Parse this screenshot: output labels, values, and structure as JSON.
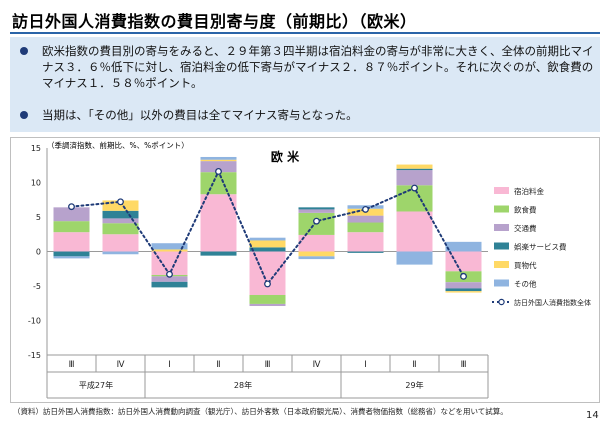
{
  "header": {
    "title": "訪日外国人消費指数の費目別寄与度（前期比）（欧米）"
  },
  "bullets": [
    "欧米指数の費目別の寄与をみると、２９年第３四半期は宿泊料金の寄与が非常に大きく、全体の前期比マイナス３．６％低下に対し、宿泊料金の低下寄与がマイナス２．８７％ポイント。それに次ぐのが、飲食費のマイナス１．５８％ポイント。",
    "当期は、「その他」以外の費目は全てマイナス寄与となった。"
  ],
  "chart_data": {
    "type": "bar",
    "stacked": true,
    "title": "欧 米",
    "unit_note": "（季調済指数、前期比、%、%ポイント）",
    "ylim": [
      -15,
      15
    ],
    "yticks": [
      15,
      10,
      5,
      0,
      -5,
      -10,
      -15
    ],
    "categories": [
      "Ⅲ",
      "Ⅳ",
      "Ⅰ",
      "Ⅱ",
      "Ⅲ",
      "Ⅳ",
      "Ⅰ",
      "Ⅱ",
      "Ⅲ"
    ],
    "year_labels": [
      {
        "label": "平成27年",
        "start": 0,
        "end": 1
      },
      {
        "label": "28年",
        "start": 2,
        "end": 5
      },
      {
        "label": "29年",
        "start": 6,
        "end": 8
      }
    ],
    "series": [
      {
        "name": "宿泊料金",
        "color": "#f9b8d4",
        "values": [
          2.8,
          2.5,
          -3.4,
          8.3,
          -6.3,
          2.4,
          2.8,
          5.8,
          -2.87
        ]
      },
      {
        "name": "飲食費",
        "color": "#9ed56b",
        "values": [
          1.6,
          1.6,
          -0.2,
          3.2,
          -1.3,
          3.2,
          1.4,
          3.8,
          -1.58
        ]
      },
      {
        "name": "交通費",
        "color": "#b7a2cc",
        "values": [
          2.0,
          0.7,
          -0.8,
          1.6,
          -0.3,
          0.5,
          1.0,
          2.2,
          -0.9
        ]
      },
      {
        "name": "娯楽サービス費",
        "color": "#2f8296",
        "values": [
          -0.7,
          1.1,
          -0.8,
          -0.6,
          0.6,
          0.3,
          -0.2,
          0.2,
          -0.4
        ]
      },
      {
        "name": "買物代",
        "color": "#ffd965",
        "values": [
          0.0,
          1.5,
          0.3,
          0.2,
          1.0,
          -0.7,
          1.0,
          0.6,
          -0.2
        ]
      },
      {
        "name": "その他",
        "color": "#8fb4e0",
        "values": [
          -0.3,
          -0.4,
          0.9,
          0.4,
          0.4,
          -0.4,
          0.5,
          -1.9,
          1.4
        ]
      }
    ],
    "line": {
      "name": "訪日外国人消費指数全体",
      "color": "#1f3b78",
      "values": [
        6.5,
        7.2,
        -3.3,
        11.6,
        -4.7,
        4.4,
        6.1,
        9.2,
        -3.6
      ]
    },
    "footnote": "（資料）訪日外国人消費指数：訪日外国人消費動向調査（観光庁）、訪日外客数（日本政府観光局）、消費者物価指数（総務省）などを用いて試算。",
    "page": "14"
  }
}
